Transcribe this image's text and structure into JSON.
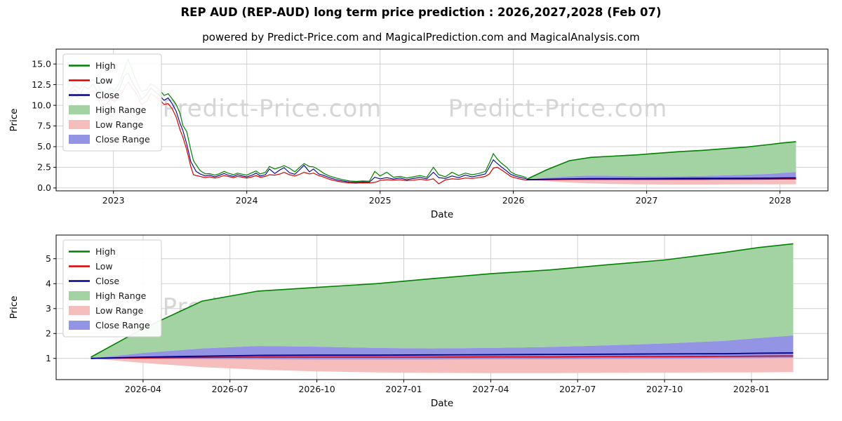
{
  "page": {
    "title": "REP AUD (REP-AUD) long term price prediction : 2026,2027,2028 (Feb 07)",
    "subtitle": "powered by Predict-Price.com and MagicalPrediction.com and MagicalAnalysis.com"
  },
  "watermark_text": "Predict-Price.com",
  "colors": {
    "grid": "#d0d0d0",
    "watermark": "#d2d2d2",
    "high_line": "#008000",
    "low_line": "#dd0000",
    "close_line": "#00008b",
    "high_band": "#a3d3a3",
    "low_band": "#f6bdbd",
    "close_band": "#9494e4",
    "axis": "#000000",
    "tick_text": "#111111"
  },
  "legend": [
    {
      "label": "High",
      "swatch": "line",
      "color": "high_line"
    },
    {
      "label": "Low",
      "swatch": "line",
      "color": "low_line"
    },
    {
      "label": "Close",
      "swatch": "line",
      "color": "close_line"
    },
    {
      "label": "High Range",
      "swatch": "patch",
      "color": "high_band"
    },
    {
      "label": "Low Range",
      "swatch": "patch",
      "color": "low_band"
    },
    {
      "label": "Close Range",
      "swatch": "patch",
      "color": "close_band"
    }
  ],
  "chart_data": [
    {
      "id": "overview",
      "type": "line",
      "title": "",
      "xlabel": "Date",
      "ylabel": "Price",
      "xlim": [
        2022.57,
        2028.36
      ],
      "ylim": [
        -0.35,
        16.8
      ],
      "grid": true,
      "legend_position": "upper left",
      "show_historical": true,
      "show_prediction": true,
      "xticks": [
        {
          "v": 2023,
          "label": "2023"
        },
        {
          "v": 2024,
          "label": "2024"
        },
        {
          "v": 2025,
          "label": "2025"
        },
        {
          "v": 2026,
          "label": "2026"
        },
        {
          "v": 2027,
          "label": "2027"
        },
        {
          "v": 2028,
          "label": "2028"
        }
      ],
      "yticks": [
        {
          "v": 0,
          "label": "0.0"
        },
        {
          "v": 2.5,
          "label": "2.5"
        },
        {
          "v": 5,
          "label": "5.0"
        },
        {
          "v": 7.5,
          "label": "7.5"
        },
        {
          "v": 10,
          "label": "10.0"
        },
        {
          "v": 12.5,
          "label": "12.5"
        },
        {
          "v": 15,
          "label": "15.0"
        }
      ]
    },
    {
      "id": "forecast",
      "type": "line",
      "title": "",
      "xlabel": "Date",
      "ylabel": "Price",
      "xlim": [
        2026.0,
        2028.22
      ],
      "ylim": [
        0.15,
        5.95
      ],
      "grid": true,
      "legend_position": "upper left",
      "show_historical": false,
      "show_prediction": true,
      "xticks": [
        {
          "v": 2026.25,
          "label": "2026-04"
        },
        {
          "v": 2026.5,
          "label": "2026-07"
        },
        {
          "v": 2026.75,
          "label": "2026-10"
        },
        {
          "v": 2027.0,
          "label": "2027-01"
        },
        {
          "v": 2027.25,
          "label": "2027-04"
        },
        {
          "v": 2027.5,
          "label": "2027-07"
        },
        {
          "v": 2027.75,
          "label": "2027-10"
        },
        {
          "v": 2028.0,
          "label": "2028-01"
        }
      ],
      "yticks": [
        {
          "v": 1,
          "label": "1"
        },
        {
          "v": 2,
          "label": "2"
        },
        {
          "v": 3,
          "label": "3"
        },
        {
          "v": 4,
          "label": "4"
        },
        {
          "v": 5,
          "label": "5"
        }
      ]
    }
  ],
  "series": {
    "historical": {
      "x": [
        2022.68,
        2022.71,
        2022.75,
        2022.78,
        2022.81,
        2022.85,
        2022.88,
        2022.91,
        2022.95,
        2022.98,
        2023.01,
        2023.05,
        2023.08,
        2023.11,
        2023.15,
        2023.18,
        2023.21,
        2023.25,
        2023.28,
        2023.31,
        2023.35,
        2023.38,
        2023.41,
        2023.44,
        2023.47,
        2023.5,
        2023.52,
        2023.55,
        2023.58,
        2023.6,
        2023.62,
        2023.65,
        2023.69,
        2023.72,
        2023.76,
        2023.79,
        2023.83,
        2023.86,
        2023.9,
        2023.93,
        2023.97,
        2024.0,
        2024.04,
        2024.07,
        2024.1,
        2024.14,
        2024.17,
        2024.21,
        2024.25,
        2024.28,
        2024.32,
        2024.36,
        2024.39,
        2024.43,
        2024.47,
        2024.5,
        2024.54,
        2024.58,
        2024.62,
        2024.67,
        2024.72,
        2024.77,
        2024.82,
        2024.87,
        2024.92,
        2024.96,
        2025.0,
        2025.05,
        2025.1,
        2025.15,
        2025.2,
        2025.25,
        2025.3,
        2025.35,
        2025.4,
        2025.44,
        2025.49,
        2025.54,
        2025.59,
        2025.64,
        2025.69,
        2025.74,
        2025.79,
        2025.82,
        2025.85,
        2025.88,
        2025.91,
        2025.95,
        2025.98,
        2026.02,
        2026.06,
        2026.1
      ],
      "close": [
        11.4,
        11.9,
        11.2,
        12.3,
        12.0,
        12.6,
        11.5,
        10.5,
        11.0,
        11.6,
        11.2,
        12.2,
        13.6,
        13.9,
        12.5,
        11.8,
        10.7,
        11.3,
        12.1,
        11.7,
        11.1,
        10.6,
        10.9,
        10.2,
        9.3,
        7.8,
        7.0,
        5.3,
        3.2,
        2.6,
        2.0,
        1.7,
        1.45,
        1.55,
        1.35,
        1.5,
        1.75,
        1.55,
        1.4,
        1.6,
        1.45,
        1.35,
        1.55,
        1.8,
        1.45,
        1.6,
        2.3,
        1.75,
        2.2,
        2.45,
        1.85,
        1.65,
        2.1,
        2.75,
        1.95,
        2.3,
        1.7,
        1.5,
        1.25,
        1.0,
        0.85,
        0.72,
        0.68,
        0.74,
        0.7,
        1.3,
        1.1,
        1.25,
        1.08,
        1.2,
        1.0,
        1.15,
        1.28,
        1.1,
        1.9,
        1.25,
        1.15,
        1.45,
        1.25,
        1.55,
        1.35,
        1.5,
        1.7,
        2.5,
        3.4,
        2.95,
        2.55,
        2.05,
        1.65,
        1.4,
        1.25,
        1.1
      ],
      "high": [
        11.9,
        12.4,
        12.0,
        12.8,
        12.7,
        13.1,
        12.6,
        11.6,
        11.5,
        12.1,
        11.8,
        12.9,
        14.3,
        15.6,
        13.8,
        12.6,
        11.7,
        11.9,
        12.6,
        12.3,
        11.8,
        11.2,
        11.4,
        10.8,
        10.1,
        9.0,
        7.6,
        6.8,
        4.6,
        3.3,
        2.8,
        2.1,
        1.7,
        1.75,
        1.55,
        1.7,
        2.0,
        1.8,
        1.6,
        1.8,
        1.65,
        1.55,
        1.85,
        2.05,
        1.7,
        1.9,
        2.6,
        2.3,
        2.5,
        2.7,
        2.4,
        1.95,
        2.4,
        2.95,
        2.6,
        2.55,
        2.2,
        1.75,
        1.45,
        1.2,
        1.0,
        0.85,
        0.8,
        0.85,
        0.82,
        2.0,
        1.45,
        1.9,
        1.3,
        1.4,
        1.2,
        1.35,
        1.5,
        1.3,
        2.5,
        1.6,
        1.35,
        1.9,
        1.5,
        1.8,
        1.6,
        1.75,
        2.0,
        3.0,
        4.15,
        3.5,
        3.0,
        2.5,
        1.95,
        1.6,
        1.45,
        1.25
      ],
      "low": [
        10.9,
        11.2,
        10.8,
        11.0,
        11.5,
        11.8,
        11.0,
        10.0,
        10.2,
        10.8,
        10.4,
        11.1,
        12.0,
        12.8,
        11.9,
        11.2,
        10.1,
        10.5,
        11.4,
        11.1,
        10.6,
        10.1,
        10.2,
        9.6,
        8.6,
        7.0,
        6.2,
        4.6,
        2.6,
        1.6,
        1.5,
        1.4,
        1.25,
        1.35,
        1.2,
        1.3,
        1.5,
        1.4,
        1.25,
        1.4,
        1.3,
        1.2,
        1.35,
        1.5,
        1.3,
        1.4,
        1.6,
        1.55,
        1.7,
        1.9,
        1.6,
        1.45,
        1.6,
        1.9,
        1.7,
        1.8,
        1.5,
        1.3,
        1.05,
        0.85,
        0.7,
        0.6,
        0.58,
        0.62,
        0.6,
        0.68,
        0.9,
        1.0,
        0.95,
        1.0,
        0.88,
        0.95,
        1.05,
        0.95,
        1.1,
        0.5,
        0.98,
        1.1,
        1.05,
        1.2,
        1.15,
        1.25,
        1.4,
        1.7,
        2.4,
        2.5,
        2.2,
        1.75,
        1.4,
        1.2,
        1.05,
        0.95
      ]
    },
    "prediction": {
      "x": [
        2026.1,
        2026.25,
        2026.42,
        2026.58,
        2026.75,
        2026.92,
        2027.08,
        2027.25,
        2027.42,
        2027.58,
        2027.75,
        2027.92,
        2028.02,
        2028.12
      ],
      "high": [
        1.05,
        2.2,
        3.3,
        3.7,
        3.85,
        4.0,
        4.2,
        4.4,
        4.55,
        4.75,
        4.95,
        5.25,
        5.45,
        5.6
      ],
      "close": [
        1.0,
        1.05,
        1.09,
        1.12,
        1.13,
        1.13,
        1.14,
        1.15,
        1.16,
        1.17,
        1.18,
        1.19,
        1.21,
        1.22
      ],
      "low": [
        1.0,
        1.02,
        1.04,
        1.05,
        1.05,
        1.05,
        1.05,
        1.06,
        1.06,
        1.07,
        1.07,
        1.08,
        1.09,
        1.1
      ],
      "close_top": [
        1.0,
        1.22,
        1.4,
        1.5,
        1.47,
        1.42,
        1.4,
        1.42,
        1.46,
        1.52,
        1.6,
        1.7,
        1.82,
        1.92
      ],
      "close_bottom": [
        1.0,
        0.99,
        0.98,
        0.97,
        0.96,
        0.96,
        0.96,
        0.97,
        0.97,
        0.98,
        0.99,
        1.0,
        1.01,
        1.02
      ],
      "low_bottom": [
        1.0,
        0.82,
        0.65,
        0.55,
        0.48,
        0.44,
        0.42,
        0.41,
        0.41,
        0.42,
        0.43,
        0.44,
        0.44,
        0.45
      ]
    }
  }
}
